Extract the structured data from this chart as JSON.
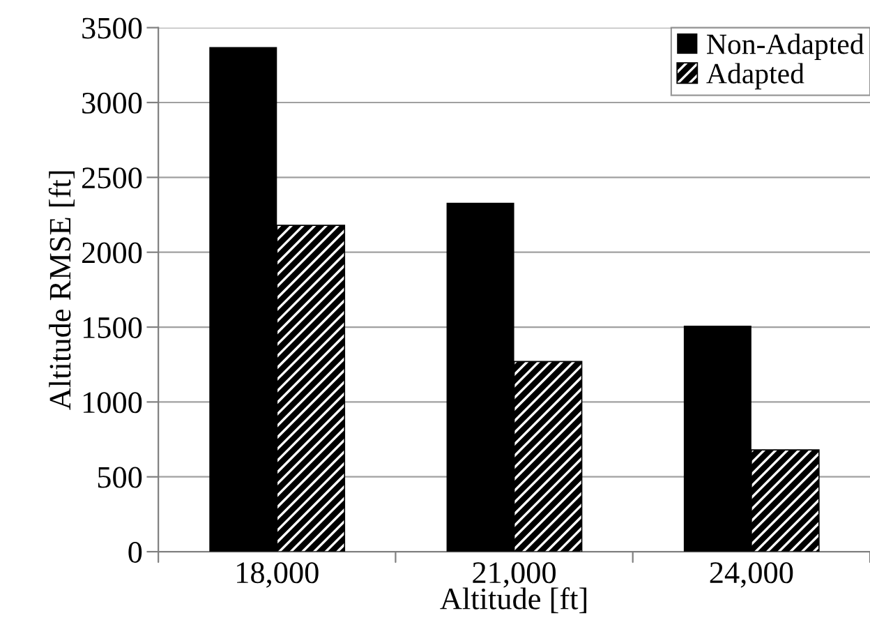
{
  "chart_data": {
    "type": "bar",
    "xlabel": "Altitude [ft]",
    "ylabel": "Altitude RMSE [ft]",
    "categories": [
      "18,000",
      "21,000",
      "24,000"
    ],
    "series": [
      {
        "name": "Non-Adapted",
        "color": "#000000",
        "values": [
          3370,
          2330,
          1510
        ]
      },
      {
        "name": "Adapted",
        "color": "#000000",
        "values": [
          2180,
          1270,
          680
        ]
      }
    ],
    "ylim": [
      0,
      3500
    ],
    "yticks": [
      0,
      500,
      1000,
      1500,
      2000,
      2500,
      3000,
      3500
    ],
    "grid": "y",
    "legend": "top right"
  }
}
